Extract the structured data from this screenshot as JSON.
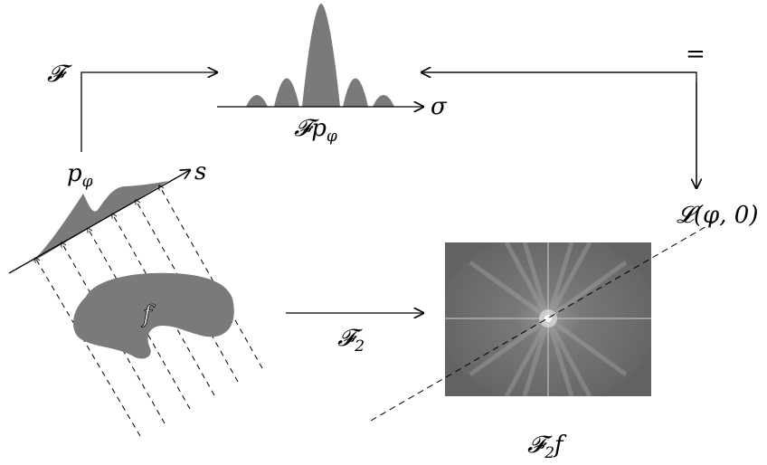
{
  "labels": {
    "top_left_op": "𝓕",
    "top_center_fn": "𝓕",
    "top_center_fn_main": "p",
    "top_center_fn_sub": "φ",
    "sigma": "σ",
    "equals": "=",
    "projection_main": "p",
    "projection_sub": "φ",
    "s_axis": "s",
    "line_L": "𝓛(φ, 0)",
    "object": "f",
    "mid_op_main": "𝓕",
    "mid_op_sub": "2",
    "bottom_right_main": "𝓕",
    "bottom_right_sub": "2",
    "bottom_right_tail": "f"
  },
  "colors": {
    "shape_fill": "#7a7a7a",
    "line": "#000000",
    "spectrum_bg": "#6e6e6e"
  }
}
